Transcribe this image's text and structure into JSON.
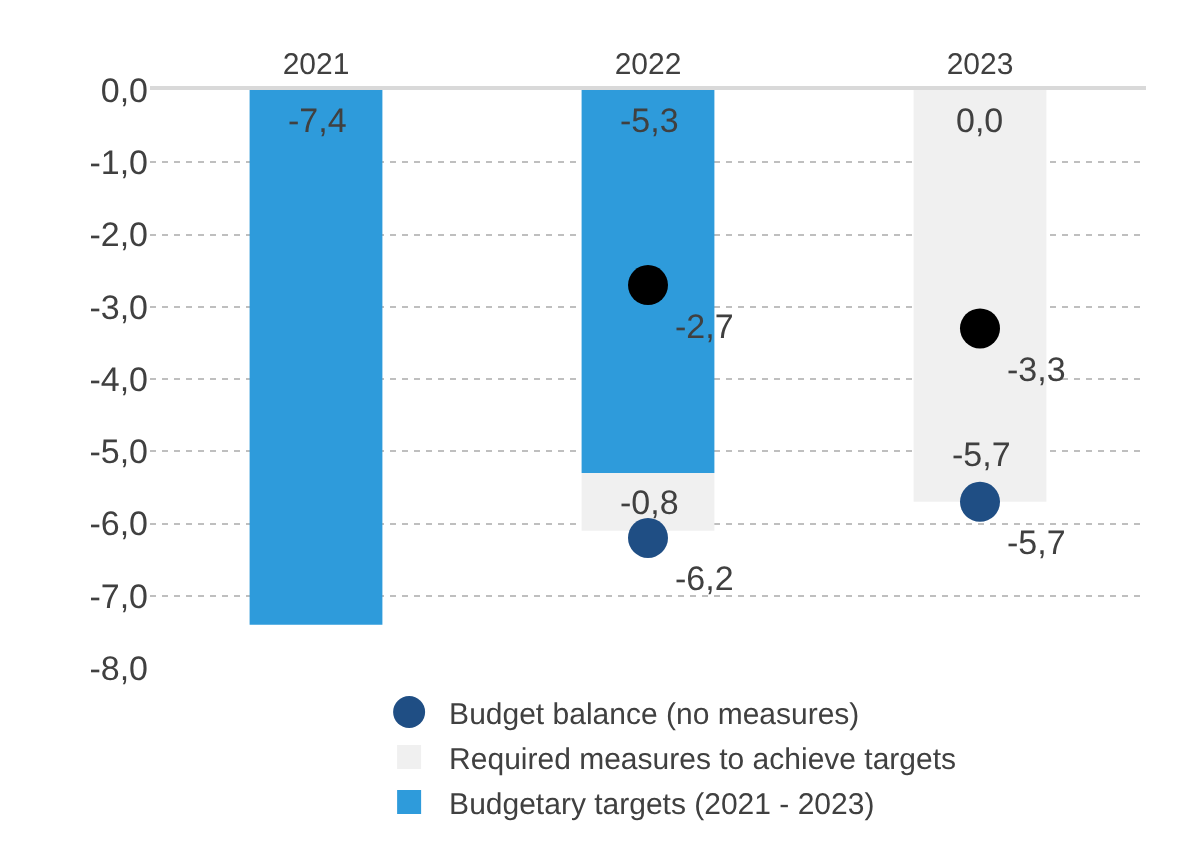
{
  "chart_data": {
    "type": "bar",
    "stacked": true,
    "categories": [
      "2021",
      "2022",
      "2023"
    ],
    "series": [
      {
        "name": "Budgetary targets (2021 - 2023)",
        "color": "#2e9bdb",
        "values": [
          -7.4,
          -5.3,
          0.0
        ],
        "value_labels": [
          "-7,4",
          "-5,3",
          "0,0"
        ]
      },
      {
        "name": "Required measures to achieve targets",
        "color": "#f0f0f0",
        "values": [
          null,
          -0.8,
          -5.7
        ],
        "value_labels": [
          null,
          "-0,8",
          "-5,7"
        ]
      },
      {
        "type": "scatter",
        "color": "#000000",
        "values": [
          null,
          -2.7,
          -3.3
        ],
        "value_labels": [
          null,
          "-2,7",
          "-3,3"
        ]
      },
      {
        "name": "Budget balance (no measures)",
        "type": "scatter",
        "color": "#1f4e84",
        "values": [
          null,
          -6.2,
          -5.7
        ],
        "value_labels": [
          null,
          "-6,2",
          "-5,7"
        ]
      }
    ],
    "ylim": [
      -8,
      0
    ],
    "yticks": [
      {
        "value": 0,
        "label": "0,0"
      },
      {
        "value": -1,
        "label": "-1,0"
      },
      {
        "value": -2,
        "label": "-2,0"
      },
      {
        "value": -3,
        "label": "-3,0"
      },
      {
        "value": -4,
        "label": "-4,0"
      },
      {
        "value": -5,
        "label": "-5,0"
      },
      {
        "value": -6,
        "label": "-6,0"
      },
      {
        "value": -7,
        "label": "-7,0"
      },
      {
        "value": -8,
        "label": "-8,0"
      }
    ],
    "grid": "y",
    "legend": "bottom",
    "marker": "circle"
  }
}
